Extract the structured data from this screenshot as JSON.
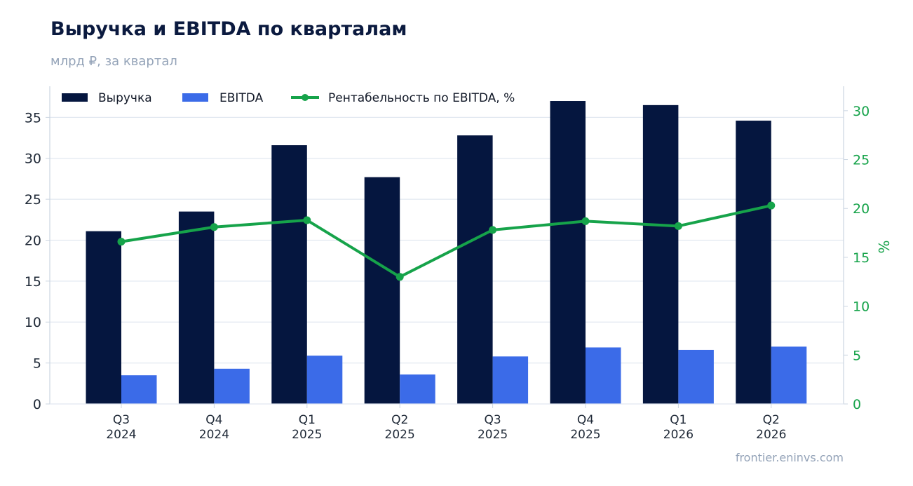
{
  "title": "Выручка и EBITDA по кварталам",
  "subtitle": "млрд ₽, за квартал",
  "source": "frontier.eninvs.com",
  "colors": {
    "revenue": "#05163f",
    "ebitda": "#3b6be8",
    "margin": "#16a34a",
    "grid": "#e2e8f0",
    "axis_text": "#1f2937",
    "right_axis_text": "#16a34a"
  },
  "chart_data": {
    "type": "bar",
    "categories": [
      [
        "Q3",
        "2024"
      ],
      [
        "Q4",
        "2024"
      ],
      [
        "Q1",
        "2025"
      ],
      [
        "Q2",
        "2025"
      ],
      [
        "Q3",
        "2025"
      ],
      [
        "Q4",
        "2025"
      ],
      [
        "Q1",
        "2026"
      ],
      [
        "Q2",
        "2026"
      ]
    ],
    "series": [
      {
        "name": "Выручка",
        "kind": "bar",
        "axis": "left",
        "values": [
          21.1,
          23.5,
          31.6,
          27.7,
          32.8,
          37.0,
          36.5,
          34.6
        ]
      },
      {
        "name": "EBITDA",
        "kind": "bar",
        "axis": "left",
        "values": [
          3.5,
          4.3,
          5.9,
          3.6,
          5.8,
          6.9,
          6.6,
          7.0
        ]
      },
      {
        "name": "Рентабельность по EBITDA, %",
        "kind": "line",
        "axis": "right",
        "values": [
          16.6,
          18.1,
          18.8,
          13.0,
          17.8,
          18.7,
          18.2,
          20.3
        ]
      }
    ],
    "ylim_left": [
      0,
      38.8
    ],
    "yticks_left": [
      0,
      5,
      10,
      15,
      20,
      25,
      30,
      35
    ],
    "ylim_right": [
      0,
      32.5
    ],
    "yticks_right": [
      0,
      5,
      10,
      15,
      20,
      25,
      30
    ],
    "ylabel_right": "%",
    "grid": true,
    "legend_position": "top-left"
  }
}
